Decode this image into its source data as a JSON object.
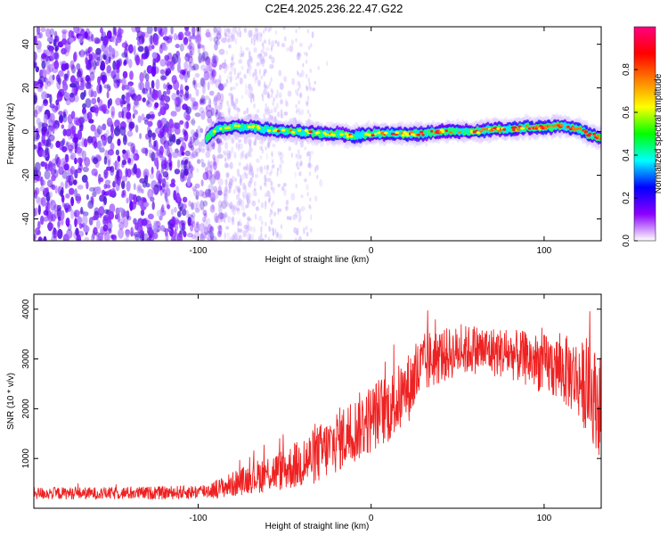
{
  "title": "C2E4.2025.236.22.47.G22",
  "chart_data": [
    {
      "type": "heatmap",
      "xlabel": "Height of straight line (km)",
      "ylabel": "Frequency (Hz)",
      "xlim": [
        -195,
        133
      ],
      "ylim": [
        -50,
        48
      ],
      "xticks": [
        -100,
        0,
        100
      ],
      "yticks": [
        -40,
        -20,
        0,
        20,
        40
      ],
      "noise_region_xlim": [
        -195,
        -85
      ],
      "faint_region_xlim": [
        -85,
        -25
      ],
      "signal_start_x": -95,
      "signal_track": {
        "x": [
          -95,
          -90,
          -80,
          -70,
          -60,
          -50,
          -40,
          -30,
          -20,
          -10,
          0,
          10,
          20,
          30,
          40,
          50,
          60,
          70,
          80,
          90,
          100,
          105,
          110,
          115,
          120,
          125,
          130,
          133
        ],
        "freq": [
          -3,
          1,
          2,
          2,
          1,
          0,
          0,
          -1,
          -1,
          -2,
          -1,
          -1,
          -1,
          -1,
          0,
          0,
          0,
          1,
          1,
          2,
          2,
          2,
          3,
          2,
          1,
          -1,
          -2,
          -3
        ]
      },
      "colorbar": {
        "label": "Normalized spectral amplitude",
        "range": [
          0.0,
          1.0
        ],
        "ticks": [
          "0.0",
          "0.2",
          "0.4",
          "0.6",
          "0.8"
        ],
        "colors": [
          "#ffffff",
          "#8b00ff",
          "#0000ff",
          "#00ffff",
          "#00ff00",
          "#ffff00",
          "#ff8000",
          "#ff0000",
          "#ff0080"
        ]
      }
    },
    {
      "type": "line",
      "xlabel": "Height of straight line (km)",
      "ylabel": "SNR (10 * v/v)",
      "xlim": [
        -195,
        133
      ],
      "ylim": [
        0,
        4300
      ],
      "xticks": [
        -100,
        0,
        100
      ],
      "yticks": [
        1000,
        2000,
        3000,
        4000
      ],
      "color": "#ee2222",
      "envelope": {
        "x": [
          -195,
          -150,
          -120,
          -100,
          -90,
          -80,
          -70,
          -60,
          -50,
          -40,
          -35,
          -30,
          -25,
          -20,
          -15,
          -10,
          -5,
          0,
          5,
          10,
          15,
          20,
          25,
          30,
          35,
          40,
          50,
          60,
          70,
          80,
          90,
          100,
          110,
          120,
          125,
          130,
          133
        ],
        "mean": [
          300,
          300,
          310,
          330,
          380,
          480,
          600,
          700,
          780,
          900,
          1000,
          1100,
          1200,
          1350,
          1450,
          1550,
          1700,
          1800,
          1950,
          2000,
          2150,
          2350,
          2600,
          2850,
          3000,
          3050,
          3150,
          3200,
          3150,
          3100,
          3000,
          2900,
          2800,
          2600,
          2400,
          2200,
          2000
        ],
        "spread": [
          120,
          120,
          130,
          140,
          180,
          250,
          300,
          380,
          420,
          500,
          550,
          600,
          600,
          650,
          650,
          650,
          700,
          700,
          700,
          700,
          700,
          700,
          700,
          650,
          600,
          550,
          500,
          500,
          500,
          500,
          550,
          600,
          700,
          800,
          900,
          1000,
          1050
        ]
      }
    }
  ]
}
